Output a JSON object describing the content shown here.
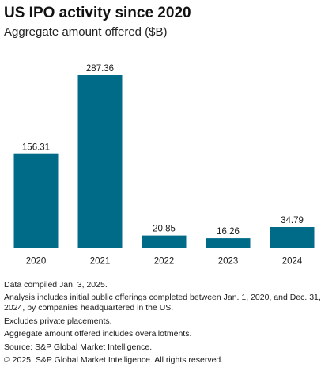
{
  "header": {
    "title": "US IPO activity since 2020",
    "subtitle": "Aggregate amount offered ($B)"
  },
  "colors": {
    "bar": "#006b88",
    "axis": "#8a8a8a"
  },
  "chart_data": {
    "type": "bar",
    "title": "US IPO activity since 2020",
    "subtitle": "Aggregate amount offered ($B)",
    "categories": [
      "2020",
      "2021",
      "2022",
      "2023",
      "2024"
    ],
    "values": [
      156.31,
      287.36,
      20.85,
      16.26,
      34.79
    ],
    "value_labels": [
      "156.31",
      "287.36",
      "20.85",
      "16.26",
      "34.79"
    ],
    "xlabel": "",
    "ylabel": "",
    "ylim": [
      0,
      290
    ],
    "grid": false,
    "data_labels": true
  },
  "notes": [
    "Data compiled Jan. 3, 2025.",
    "Analysis includes initial public offerings completed between Jan. 1, 2020, and Dec. 31, 2024, by companies headquartered in the US.",
    "Excludes private placements.",
    "Aggregate amount offered includes overallotments.",
    "Source: S&P Global Market Intelligence.",
    "© 2025. S&P Global Market Intelligence. All rights reserved."
  ]
}
